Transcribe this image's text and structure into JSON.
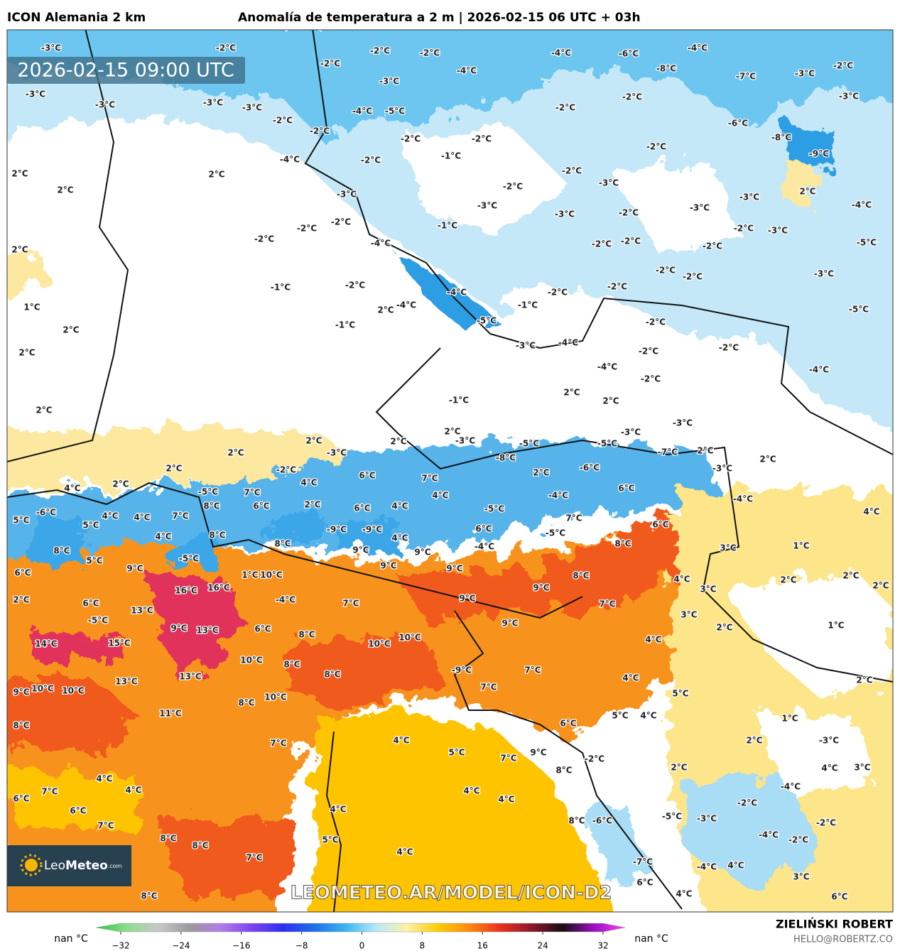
{
  "header": {
    "model": "ICON Alemania 2 km",
    "title": "Anomalía de temperatura a 2 m | 2026-02-15 06 UTC + 03h"
  },
  "map": {
    "valid_time": "2026-02-15 09:00 UTC",
    "watermark": "LEOMETEO.AR/MODEL/ICON-D2",
    "logo": {
      "name": "Leo",
      "brand": "Meteo",
      "suffix": ".com"
    },
    "contour_labels": [
      "-3°C",
      "-2°C",
      "-2°C",
      "-2°C",
      "-4°C",
      "-6°C",
      "-4°C",
      "-3°C",
      "-3°C",
      "-2°C",
      "-3°C",
      "-4°C",
      "-8°C",
      "-7°C",
      "-3°C",
      "-2°C",
      "-3°C",
      "-3°C",
      "-4°C",
      "-5°C",
      "-2°C",
      "-2°C",
      "-3°C",
      "-2°C",
      "-4°C",
      "-2°C",
      "-2°C",
      "-1°C",
      "-2°C",
      "-2°C",
      "-2°C",
      "-9°C",
      "-8°C",
      "-6°C",
      "2°C",
      "2°C",
      "2°C",
      "-3°C",
      "-2°C",
      "-2°C",
      "-3°C",
      "-3°C",
      "-3°C",
      "-2°C",
      "-3°C",
      "-3°C",
      "2°C",
      "-4°C",
      "-1°C",
      "-2°C",
      "-2°C",
      "-2°C",
      "2°C",
      "-4°C",
      "-2°C",
      "-2°C",
      "-2°C",
      "-2°C",
      "-3°C",
      "-5°C",
      "-1°C",
      "-2°C",
      "-2°C",
      "-2°C",
      "-2°C",
      "-2°C",
      "-3°C",
      "-4°C",
      "1°C",
      "2°C",
      "2°C",
      "-4°C",
      "-1°C",
      "-5°C",
      "-2°C",
      "-5°C",
      "2°C",
      "-1°C",
      "-3°C",
      "-4°C",
      "-4°C",
      "-2°C",
      "-2°C",
      "-2°C",
      "-4°C",
      "2°C",
      "-1°C",
      "2°C",
      "2°C",
      "2°C",
      "2°C",
      "2°C",
      "-3°C",
      "2°C",
      "-3°C",
      "-5°C",
      "-5°C",
      "-3°C",
      "-3°C",
      "-7°C",
      "2°C",
      "2°C",
      "2°C",
      "2°C",
      "4°C",
      "-2°C",
      "-8°C",
      "6°C",
      "7°C",
      "4°C",
      "2°C",
      "-6°C",
      "-3°C",
      "6°C",
      "-4°C",
      "-5°C",
      "7°C",
      "4°C",
      "-4°C",
      "5°C",
      "-6°C",
      "4°C",
      "4°C",
      "8°C",
      "7°C",
      "6°C",
      "2°C",
      "6°C",
      "4°C",
      "-5°C",
      "7°C",
      "6°C",
      "4°C",
      "5°C",
      "-9°C",
      "-9°C",
      "6°C",
      "-5°C",
      "8°C",
      "4°C",
      "4°C",
      "-4°C",
      "8°C",
      "8°C",
      "9°C",
      "9°C",
      "8°C",
      "3°C",
      "1°C",
      "5°C",
      "-5°C",
      "9°C",
      "9°C",
      "9°C",
      "8°C",
      "2°C",
      "2°C",
      "2°C",
      "4°C",
      "3°C",
      "6°C",
      "16°C",
      "16°C",
      "1°C",
      "10°C",
      "9°C",
      "-4°C",
      "7°C",
      "9°C",
      "7°C",
      "3°C",
      "6°C",
      "2°C",
      "13°C",
      "-5°C",
      "9°C",
      "13°C",
      "6°C",
      "8°C",
      "9°C",
      "2°C",
      "1°C",
      "4°C",
      "14°C",
      "15°C",
      "10°C",
      "10°C",
      "10°C",
      "8°C",
      "8°C",
      "-9°C",
      "7°C",
      "4°C",
      "2°C",
      "13°C",
      "13°C",
      "9°C",
      "10°C",
      "10°C",
      "7°C",
      "5°C",
      "11°C",
      "8°C",
      "10°C",
      "5°C",
      "4°C",
      "1°C",
      "8°C",
      "6°C",
      "4°C",
      "7°C",
      "5°C",
      "2°C",
      "-3°C",
      "7°C",
      "9°C",
      "-2°C",
      "2°C",
      "4°C",
      "3°C",
      "8°C",
      "4°C",
      "4°C",
      "7°C",
      "6°C",
      "4°C",
      "4°C",
      "-4°C",
      "-2°C",
      "4°C",
      "6°C",
      "8°C",
      "-6°C",
      "-5°C",
      "-3°C",
      "-4°C",
      "-2°C",
      "7°C",
      "8°C",
      "8°C",
      "5°C",
      "-2°C",
      "4°C",
      "7°C",
      "-7°C",
      "4°C",
      "-4°C",
      "6°C",
      "3°C",
      "4°C",
      "6°C",
      "8°C"
    ]
  },
  "colorbar": {
    "left_label": "nan °C",
    "right_label": "nan °C",
    "clim": [
      -32,
      32
    ],
    "colors": [
      "#22c93a",
      "#8fdc8f",
      "#c9c9c9",
      "#9a9a9a",
      "#b57ce6",
      "#7c44ef",
      "#2d2df0",
      "#1e6fe6",
      "#3ab4f2",
      "#b6e9fb",
      "#fff2a8",
      "#ffcc00",
      "#ff8a10",
      "#e8301c",
      "#8a1a2a",
      "#1a0a14",
      "#9a10c0",
      "#ff40ff"
    ],
    "ticks": [
      {
        "value": -32,
        "label": "−32"
      },
      {
        "value": -24,
        "label": "−24"
      },
      {
        "value": -16,
        "label": "−16"
      },
      {
        "value": -8,
        "label": "−8"
      },
      0,
      8,
      16,
      24,
      32
    ]
  },
  "footer": {
    "author": "ZIELIŃSKI ROBERT",
    "email": "HELLO@ROBERTZ.CO"
  }
}
